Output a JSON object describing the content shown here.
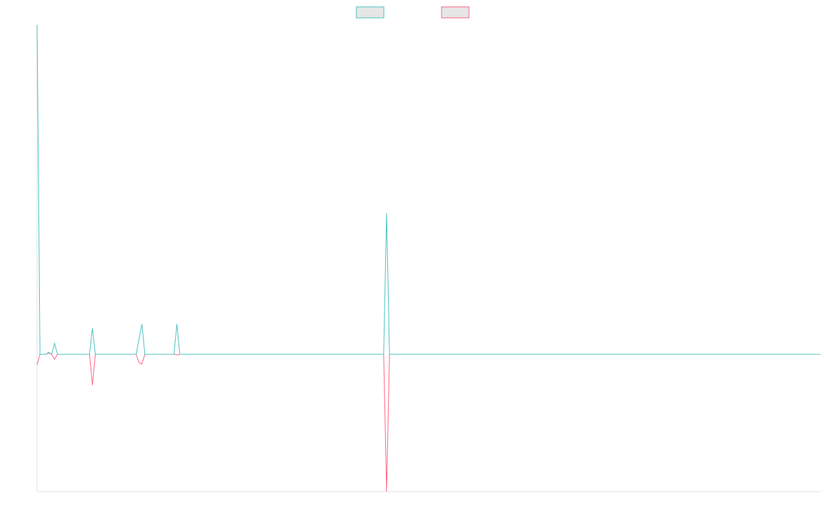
{
  "chart_data": {
    "type": "line",
    "x": [
      0,
      1,
      3,
      4,
      5,
      6,
      7,
      18,
      19,
      20,
      34,
      35,
      36,
      37,
      47,
      48,
      49,
      119,
      120,
      121,
      269
    ],
    "xlim": [
      0,
      269
    ],
    "ylim": [
      -200,
      480
    ],
    "grid": false,
    "legend": "top",
    "series": [
      {
        "color": "#4bc0c0",
        "values": [
          480,
          0,
          0,
          3,
          0,
          16,
          0,
          0,
          38,
          0,
          0,
          22,
          44,
          0,
          0,
          44,
          0,
          0,
          206,
          0,
          0
        ]
      },
      {
        "color": "#ff6384",
        "values": [
          -15,
          0,
          0,
          2,
          0,
          -7,
          0,
          0,
          -45,
          0,
          0,
          -12,
          -14,
          0,
          0,
          -1,
          0,
          0,
          -200,
          0,
          0
        ]
      }
    ]
  }
}
